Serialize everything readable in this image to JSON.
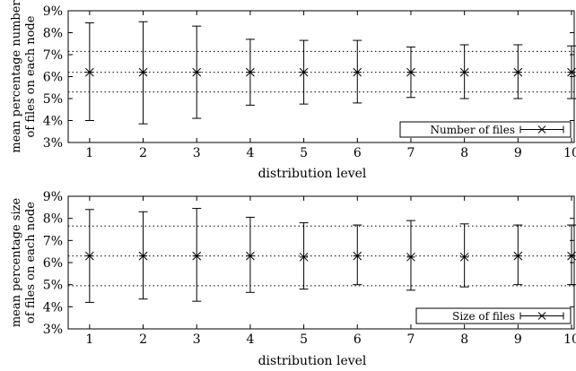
{
  "chart_data": [
    {
      "type": "scatter",
      "xlabel": "distribution level",
      "ylabel_lines": [
        "mean percentage number",
        "of files on each node"
      ],
      "x": [
        1,
        2,
        3,
        4,
        5,
        6,
        7,
        8,
        9,
        10
      ],
      "xlim": [
        0.6,
        10.05
      ],
      "ylim": [
        3,
        9
      ],
      "yticks": [
        "3%",
        "4%",
        "5%",
        "6%",
        "7%",
        "8%",
        "9%"
      ],
      "xticks": [
        "1",
        "2",
        "3",
        "4",
        "5",
        "6",
        "7",
        "8",
        "9",
        "10"
      ],
      "reference_lines": [
        5.3,
        6.2,
        7.15
      ],
      "legend_position": "bottom-right",
      "series": [
        {
          "name": "Number of files",
          "y": [
            6.2,
            6.2,
            6.2,
            6.2,
            6.2,
            6.2,
            6.2,
            6.2,
            6.2,
            6.2
          ],
          "high": [
            8.45,
            8.5,
            8.3,
            7.7,
            7.65,
            7.65,
            7.35,
            7.45,
            7.45,
            7.4
          ],
          "low": [
            4.0,
            3.85,
            4.1,
            4.7,
            4.75,
            4.8,
            5.05,
            5.0,
            5.0,
            5.0
          ]
        }
      ]
    },
    {
      "type": "scatter",
      "xlabel": "distribution level",
      "ylabel_lines": [
        "mean percentage size",
        "of files on each node"
      ],
      "x": [
        1,
        2,
        3,
        4,
        5,
        6,
        7,
        8,
        9,
        10
      ],
      "xlim": [
        0.6,
        10.05
      ],
      "ylim": [
        3,
        9
      ],
      "yticks": [
        "3%",
        "4%",
        "5%",
        "6%",
        "7%",
        "8%",
        "9%"
      ],
      "xticks": [
        "1",
        "2",
        "3",
        "4",
        "5",
        "6",
        "7",
        "8",
        "9",
        "10"
      ],
      "reference_lines": [
        4.95,
        6.3,
        7.65
      ],
      "legend_position": "bottom-right",
      "series": [
        {
          "name": "Size of files",
          "y": [
            6.3,
            6.3,
            6.3,
            6.3,
            6.25,
            6.3,
            6.25,
            6.25,
            6.3,
            6.3
          ],
          "high": [
            8.4,
            8.3,
            8.45,
            8.05,
            7.8,
            7.7,
            7.9,
            7.75,
            7.7,
            7.7
          ],
          "low": [
            4.2,
            4.35,
            4.25,
            4.65,
            4.8,
            5.0,
            4.75,
            4.9,
            5.0,
            5.0
          ]
        }
      ]
    }
  ]
}
